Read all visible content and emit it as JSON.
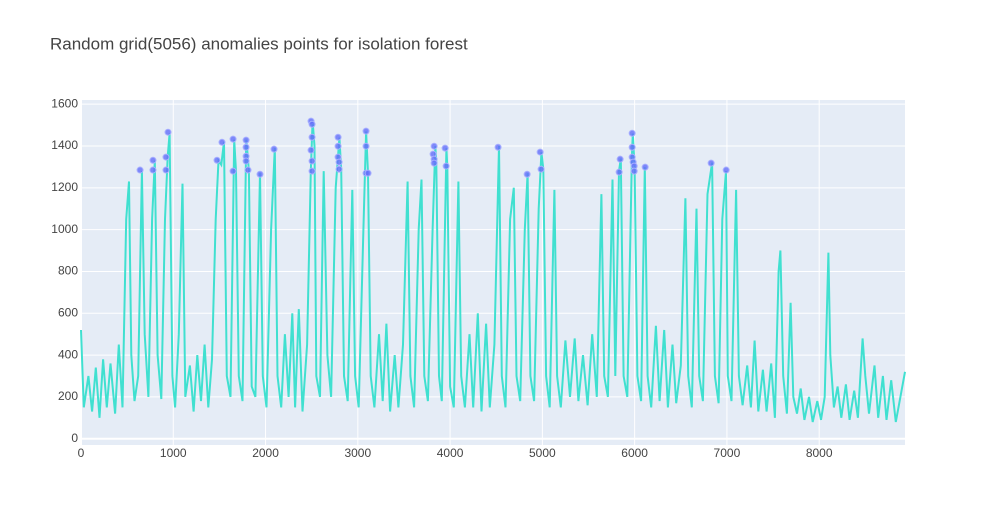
{
  "chart_data": {
    "type": "line",
    "title": "Random grid(5056) anomalies points for isolation forest",
    "xlim": [
      0,
      8930
    ],
    "ylim": [
      -30,
      1620
    ],
    "xticks": [
      0,
      1000,
      2000,
      3000,
      4000,
      5000,
      6000,
      7000,
      8000
    ],
    "yticks": [
      0,
      200,
      400,
      600,
      800,
      1000,
      1200,
      1400,
      1600
    ],
    "grid": true,
    "plot_bgcolor": "#e5ecf6",
    "series": [
      {
        "type": "line",
        "color": "#40e0d0",
        "x": [
          0,
          30,
          80,
          120,
          160,
          200,
          240,
          280,
          320,
          370,
          410,
          450,
          490,
          520,
          545,
          580,
          620,
          660,
          690,
          730,
          770,
          800,
          830,
          870,
          910,
          940,
          960,
          990,
          1020,
          1060,
          1100,
          1130,
          1180,
          1220,
          1260,
          1300,
          1340,
          1380,
          1420,
          1460,
          1490,
          1520,
          1550,
          1580,
          1620,
          1660,
          1680,
          1710,
          1750,
          1790,
          1800,
          1820,
          1850,
          1890,
          1940,
          1970,
          2010,
          2060,
          2100,
          2130,
          2170,
          2210,
          2250,
          2290,
          2320,
          2360,
          2400,
          2450,
          2490,
          2510,
          2530,
          2550,
          2590,
          2630,
          2670,
          2710,
          2760,
          2800,
          2820,
          2850,
          2890,
          2940,
          2970,
          3010,
          3060,
          3090,
          3110,
          3140,
          3180,
          3230,
          3270,
          3310,
          3350,
          3400,
          3440,
          3490,
          3540,
          3570,
          3610,
          3660,
          3690,
          3720,
          3760,
          3810,
          3840,
          3850,
          3880,
          3910,
          3960,
          3970,
          4000,
          4040,
          4090,
          4120,
          4160,
          4210,
          4250,
          4300,
          4340,
          4390,
          4430,
          4480,
          4530,
          4560,
          4600,
          4650,
          4690,
          4720,
          4760,
          4810,
          4840,
          4870,
          4910,
          4960,
          4990,
          5010,
          5040,
          5080,
          5130,
          5160,
          5200,
          5250,
          5300,
          5350,
          5390,
          5440,
          5490,
          5540,
          5590,
          5640,
          5670,
          5710,
          5760,
          5790,
          5830,
          5850,
          5880,
          5920,
          5970,
          5980,
          6000,
          6030,
          6070,
          6110,
          6140,
          6180,
          6230,
          6270,
          6320,
          6360,
          6410,
          6450,
          6500,
          6550,
          6580,
          6620,
          6670,
          6700,
          6740,
          6790,
          6840,
          6870,
          6910,
          6950,
          6990,
          7010,
          7050,
          7100,
          7130,
          7170,
          7220,
          7260,
          7300,
          7340,
          7390,
          7430,
          7480,
          7520,
          7560,
          7580,
          7610,
          7650,
          7690,
          7720,
          7760,
          7800,
          7840,
          7890,
          7930,
          7980,
          8020,
          8060,
          8100,
          8120,
          8160,
          8200,
          8240,
          8290,
          8330,
          8380,
          8420,
          8470,
          8500,
          8540,
          8600,
          8640,
          8690,
          8730,
          8780,
          8830,
          8880,
          8930
        ],
        "values": [
          520,
          150,
          300,
          130,
          340,
          100,
          380,
          150,
          360,
          120,
          450,
          150,
          1050,
          1230,
          400,
          180,
          300,
          1280,
          500,
          200,
          1050,
          1330,
          400,
          190,
          1050,
          1350,
          1460,
          300,
          150,
          500,
          1220,
          200,
          350,
          130,
          400,
          180,
          450,
          150,
          380,
          1050,
          1330,
          1310,
          1420,
          300,
          200,
          1430,
          1280,
          300,
          180,
          1430,
          1390,
          1280,
          250,
          200,
          1270,
          300,
          150,
          1000,
          1390,
          300,
          150,
          500,
          200,
          600,
          150,
          620,
          130,
          450,
          1280,
          1520,
          1400,
          300,
          200,
          1280,
          400,
          200,
          1200,
          1440,
          1290,
          300,
          180,
          1190,
          300,
          150,
          1000,
          1470,
          1270,
          300,
          150,
          500,
          180,
          550,
          130,
          400,
          150,
          450,
          1230,
          300,
          150,
          1000,
          1240,
          300,
          180,
          1000,
          1400,
          1320,
          300,
          180,
          1390,
          1300,
          250,
          150,
          1230,
          300,
          150,
          500,
          150,
          600,
          130,
          550,
          150,
          450,
          1400,
          300,
          150,
          1050,
          1200,
          300,
          180,
          1000,
          1270,
          300,
          180,
          1100,
          1370,
          1290,
          300,
          150,
          1190,
          300,
          150,
          470,
          200,
          480,
          180,
          400,
          160,
          500,
          200,
          1170,
          300,
          200,
          1240,
          300,
          1280,
          1340,
          300,
          200,
          1350,
          1460,
          1300,
          300,
          180,
          1300,
          300,
          150,
          540,
          180,
          520,
          150,
          450,
          170,
          350,
          1150,
          300,
          150,
          1100,
          300,
          180,
          1170,
          1320,
          300,
          170,
          1050,
          1280,
          300,
          180,
          1190,
          300,
          160,
          350,
          150,
          470,
          130,
          330,
          130,
          360,
          100,
          800,
          900,
          300,
          120,
          650,
          200,
          120,
          240,
          90,
          200,
          80,
          180,
          90,
          200,
          890,
          400,
          150,
          250,
          100,
          260,
          90,
          230,
          100,
          480,
          300,
          120,
          350,
          100,
          300,
          90,
          280,
          80,
          200,
          320
        ]
      },
      {
        "type": "scatter",
        "color": "#636efa",
        "x": [
          640,
          780,
          780,
          921,
          921,
          943,
          1474,
          1528,
          1648,
          1648,
          1789,
          1789,
          1789,
          1789,
          1810,
          1940,
          2092,
          2493,
          2504,
          2504,
          2493,
          2504,
          2504,
          2786,
          2786,
          2786,
          2797,
          2797,
          3089,
          3089,
          3089,
          3111,
          3827,
          3816,
          3827,
          3827,
          3946,
          3957,
          4520,
          4835,
          4976,
          4986,
          5832,
          5843,
          5973,
          5973,
          5973,
          5984,
          5995,
          5995,
          6114,
          6829,
          6992
        ],
        "values": [
          1285,
          1332,
          1285,
          1347,
          1285,
          1466,
          1332,
          1418,
          1433,
          1280,
          1428,
          1394,
          1351,
          1328,
          1285,
          1265,
          1385,
          1519,
          1504,
          1442,
          1380,
          1328,
          1280,
          1442,
          1399,
          1347,
          1323,
          1289,
          1471,
          1399,
          1270,
          1270,
          1399,
          1361,
          1337,
          1318,
          1390,
          1304,
          1394,
          1265,
          1371,
          1289,
          1275,
          1337,
          1461,
          1394,
          1347,
          1323,
          1304,
          1280,
          1299,
          1318,
          1285
        ]
      }
    ]
  }
}
